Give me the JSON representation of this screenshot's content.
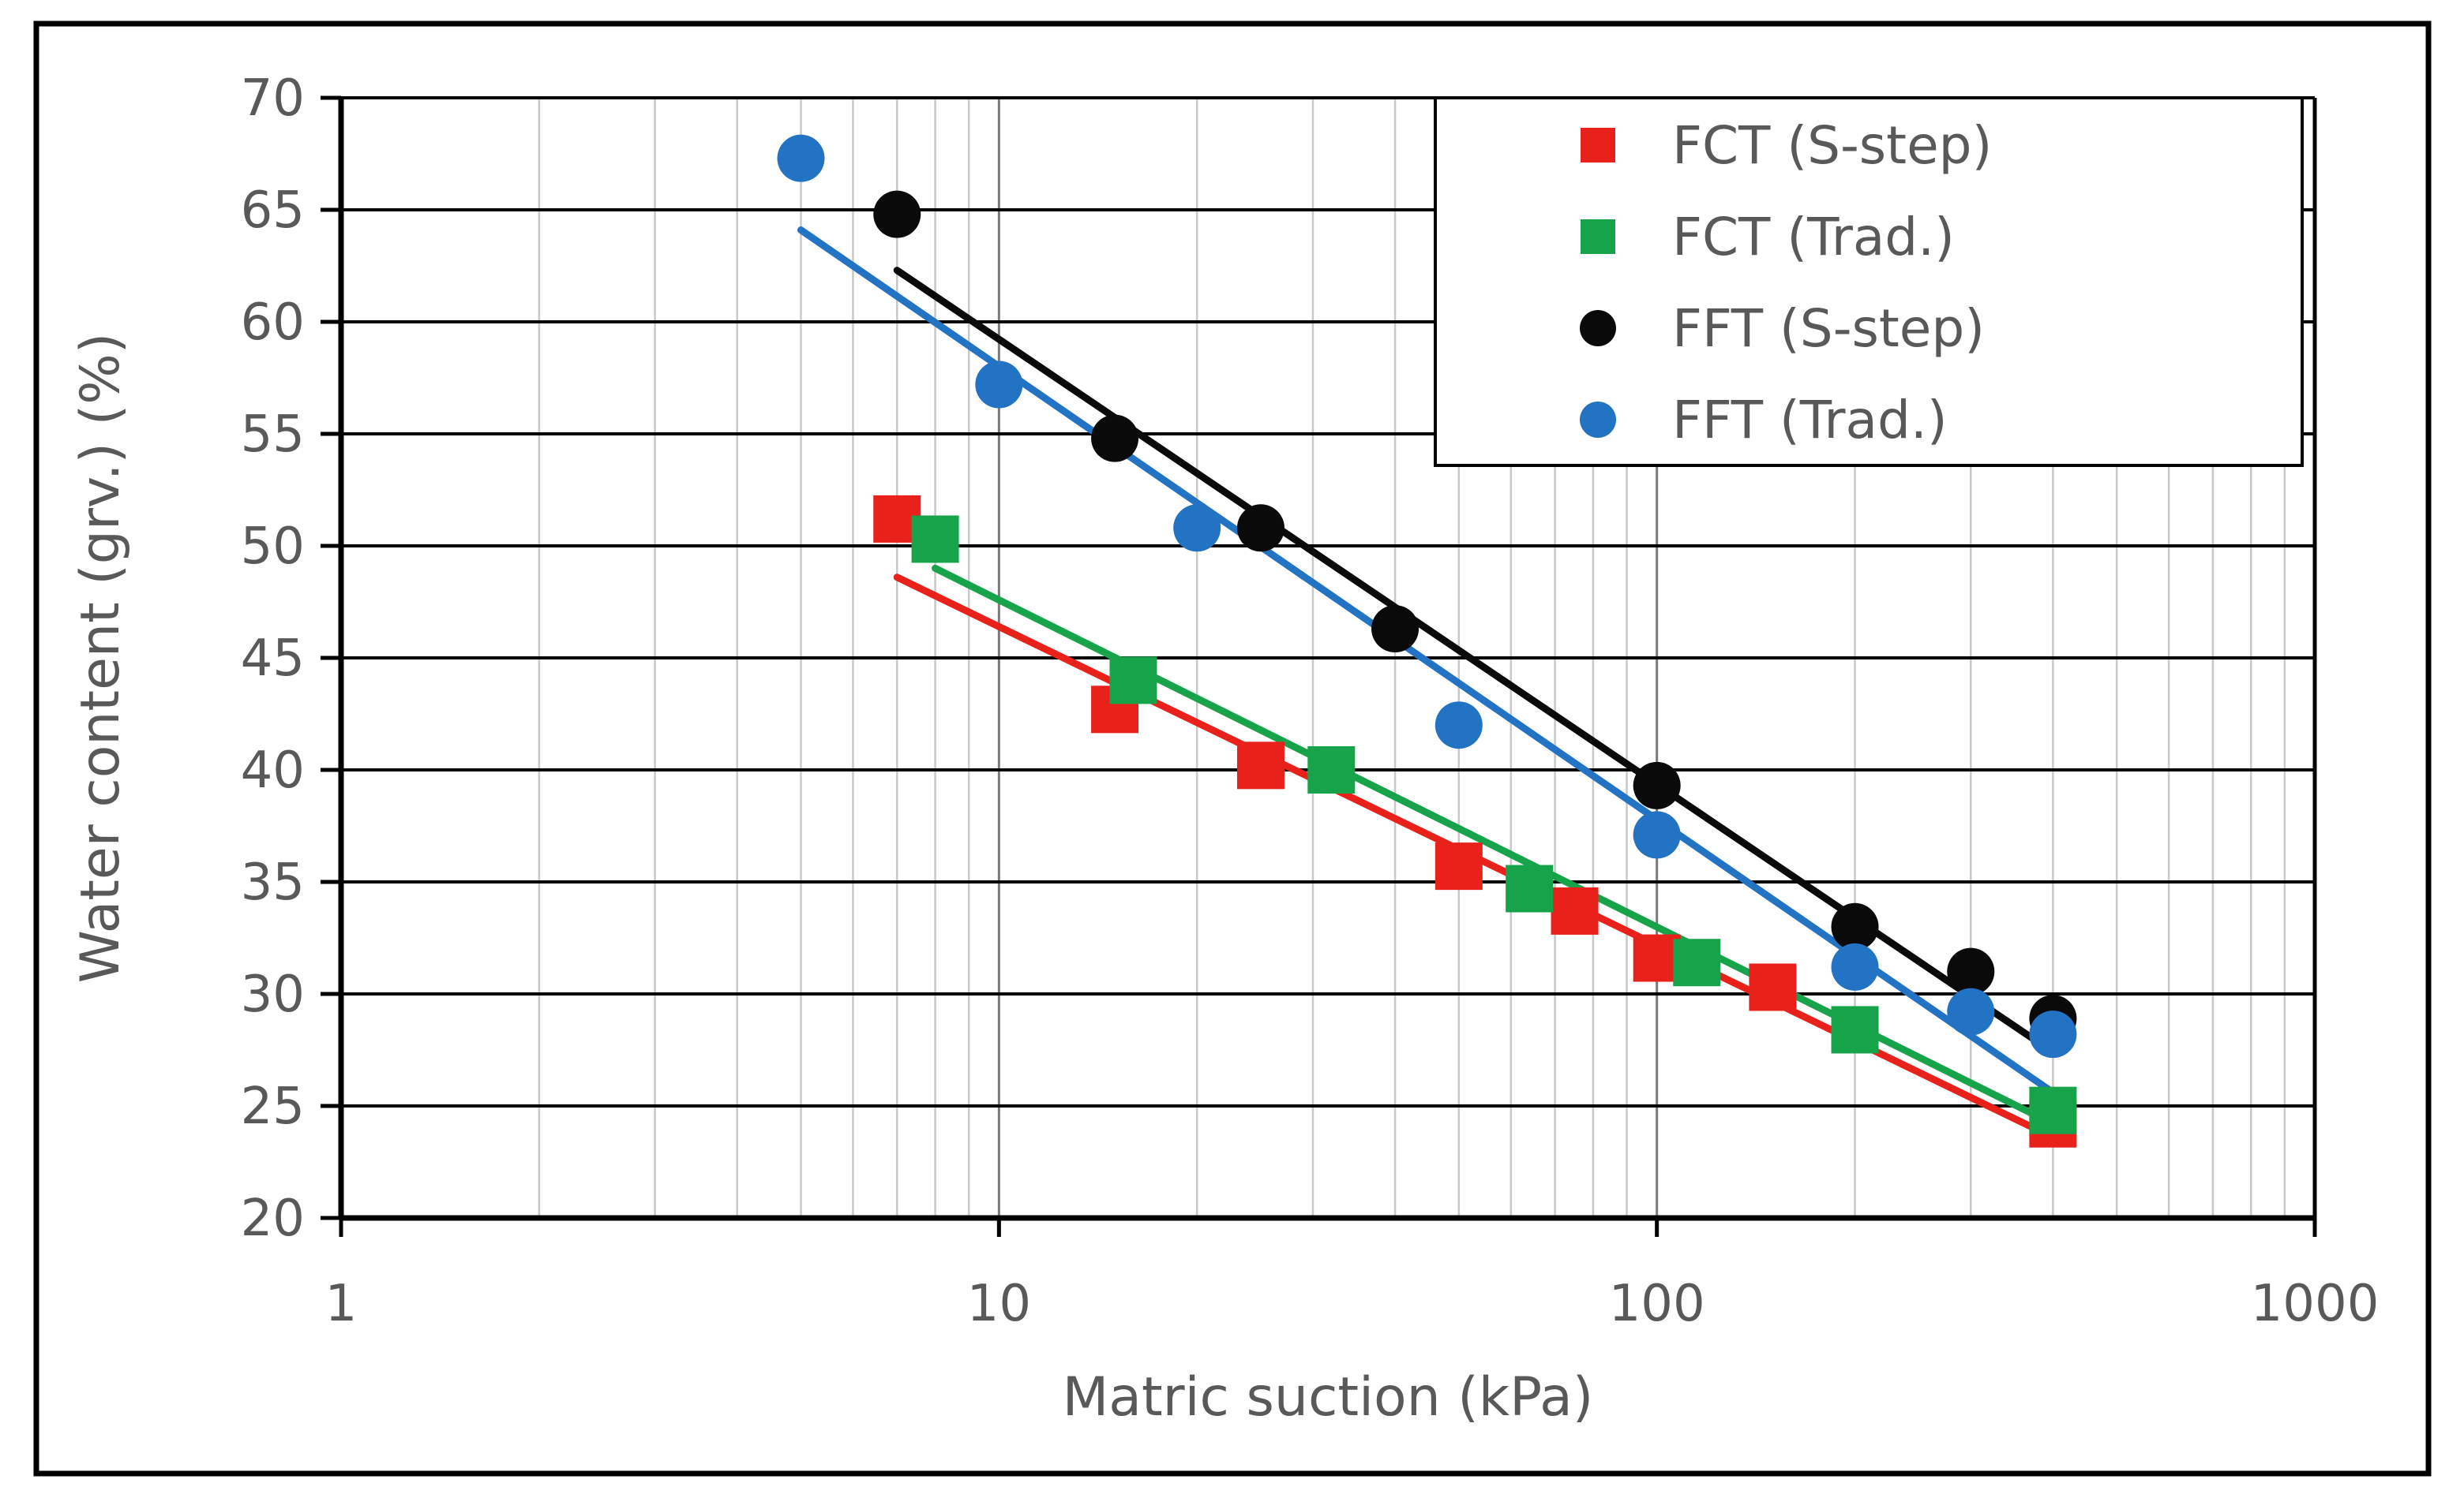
{
  "chart_data": {
    "type": "scatter",
    "title": "",
    "xlabel": "Matric suction (kPa)",
    "ylabel": "Water content (grv.)  (%)",
    "xscale": "log",
    "xlim": [
      1,
      1000
    ],
    "ylim": [
      20,
      70
    ],
    "xticks": [
      1,
      10,
      100,
      1000
    ],
    "xtick_labels": [
      "1",
      "10",
      "100",
      "1000"
    ],
    "yticks": [
      20,
      25,
      30,
      35,
      40,
      45,
      50,
      55,
      60,
      65,
      70
    ],
    "ytick_labels": [
      "20",
      "25",
      "30",
      "35",
      "40",
      "45",
      "50",
      "55",
      "60",
      "65",
      "70"
    ],
    "grid": true,
    "legend_position": "top-right",
    "series": [
      {
        "name": "FCT (S-step)",
        "marker": "square",
        "color": "#e8221a",
        "x": [
          7,
          15,
          25,
          50,
          75,
          100,
          150,
          400
        ],
        "y": [
          51.2,
          42.7,
          40.2,
          35.7,
          33.7,
          31.6,
          30.3,
          24.2
        ],
        "trend": {
          "x": [
            7,
            400
          ],
          "y": [
            48.6,
            23.6
          ]
        }
      },
      {
        "name": "FCT (Trad.)",
        "marker": "square",
        "color": "#17a34a",
        "x": [
          8,
          16,
          32,
          64,
          115,
          200,
          400
        ],
        "y": [
          50.3,
          44.0,
          40.0,
          34.7,
          31.4,
          28.4,
          24.8
        ],
        "trend": {
          "x": [
            8,
            400
          ],
          "y": [
            49.0,
            24.2
          ]
        }
      },
      {
        "name": "FFT (S-step)",
        "marker": "circle",
        "color": "#0a0a0a",
        "x": [
          7,
          15,
          25,
          40,
          100,
          200,
          300,
          400
        ],
        "y": [
          64.8,
          54.8,
          50.8,
          46.3,
          39.3,
          33.0,
          31.0,
          28.9
        ],
        "trend": {
          "x": [
            7,
            400
          ],
          "y": [
            62.3,
            27.4
          ]
        }
      },
      {
        "name": "FFT (Trad.)",
        "marker": "circle",
        "color": "#2273c3",
        "x": [
          5,
          10,
          20,
          50,
          100,
          200,
          300,
          400
        ],
        "y": [
          67.3,
          57.2,
          50.8,
          42.0,
          37.1,
          31.2,
          29.2,
          28.2
        ],
        "trend": {
          "x": [
            5,
            400
          ],
          "y": [
            64.1,
            25.6
          ]
        }
      }
    ]
  }
}
